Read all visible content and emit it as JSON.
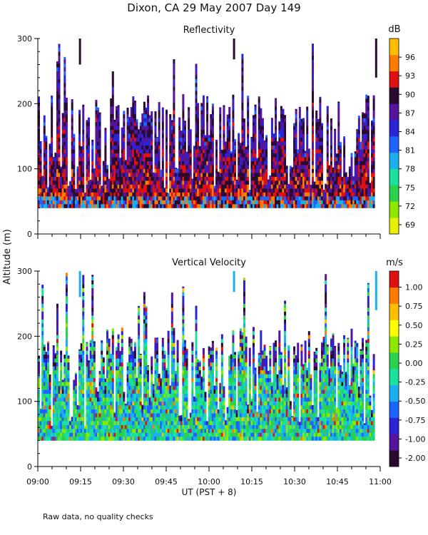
{
  "title": "Dixon, CA 29 May 2007  Day 149",
  "y_axis_label": "Altitude (m)",
  "x_axis_label": "UT  (PST + 8)",
  "footnote": "Raw data, no quality checks",
  "colors": {
    "reflectivity_scale": [
      "#e6f000",
      "#8de800",
      "#2ad14a",
      "#1ae0a0",
      "#1ab0ee",
      "#1d63ff",
      "#2b23d6",
      "#55149c",
      "#2a0a2f",
      "#e01010",
      "#ff7c00",
      "#ffbf00"
    ],
    "velocity_scale": [
      "#2a0a2f",
      "#55149c",
      "#2b23d6",
      "#1d63ff",
      "#1ab0ee",
      "#1ae0a0",
      "#2ad14a",
      "#8de800",
      "#ffff00",
      "#ffbf00",
      "#ff7c00",
      "#e01010"
    ]
  },
  "chart_data": [
    {
      "type": "heatmap",
      "title": "Reflectivity",
      "colorbar_unit": "dB",
      "colorbar_ticks": [
        "96",
        "93",
        "90",
        "87",
        "84",
        "81",
        "78",
        "75",
        "72",
        "69"
      ],
      "colorbar_range": [
        67.5,
        99
      ],
      "ylim": [
        0,
        300
      ],
      "y_ticks": [
        "300",
        "200",
        "100",
        "0"
      ],
      "xlim": [
        "09:00",
        "11:00"
      ],
      "x_ticks": [
        "09:00",
        "09:15",
        "09:30",
        "09:45",
        "10:00",
        "10:15",
        "10:30",
        "10:45",
        "11:00"
      ],
      "data_bottom_m": 40,
      "data_top_m_range": [
        60,
        300
      ],
      "value_profile": "high (84-93 dB) near 50-120 m, decreasing aloft"
    },
    {
      "type": "heatmap",
      "title": "Vertical Velocity",
      "colorbar_unit": "m/s",
      "colorbar_ticks": [
        "1.00",
        "0.75",
        "0.50",
        "0.25",
        "0.00",
        "-0.25",
        "-0.50",
        "-0.75",
        "-1.00",
        "-2.00"
      ],
      "colorbar_range": [
        -2.25,
        1.25
      ],
      "ylim": [
        0,
        300
      ],
      "y_ticks": [
        "300",
        "200",
        "100",
        "0"
      ],
      "xlim": [
        "09:00",
        "11:00"
      ],
      "x_ticks": [
        "09:00",
        "09:15",
        "09:30",
        "09:45",
        "10:00",
        "10:15",
        "10:30",
        "10:45",
        "11:00"
      ],
      "data_bottom_m": 40,
      "data_top_m_range": [
        60,
        300
      ],
      "value_profile": "mostly -0.5 to 0.5 m/s near 50-180 m, -1.0 to -2.0 m/s at column tops"
    }
  ]
}
